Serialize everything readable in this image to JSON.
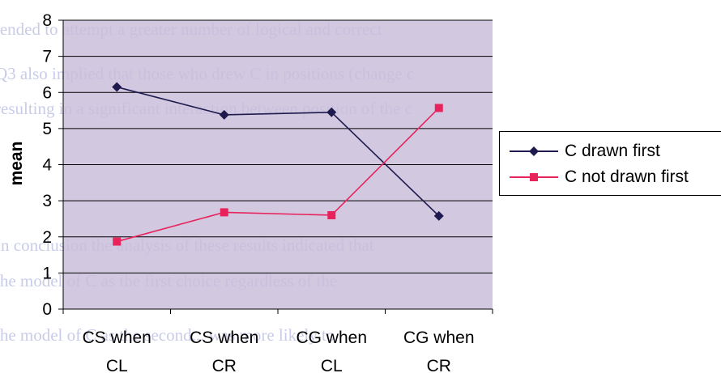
{
  "chart_data": {
    "type": "line",
    "categories": [
      [
        "CS when",
        "CL"
      ],
      [
        "CS when",
        "CR"
      ],
      [
        "CG when",
        "CL"
      ],
      [
        "CG when",
        "CR"
      ]
    ],
    "series": [
      {
        "name": "C drawn first",
        "values": [
          6.15,
          5.38,
          5.45,
          2.58
        ],
        "color": "#1f1a4d",
        "marker": "diamond"
      },
      {
        "name": "C not drawn first",
        "values": [
          1.87,
          2.68,
          2.6,
          5.57
        ],
        "color": "#e8235c",
        "marker": "square"
      }
    ],
    "title": "",
    "xlabel": "",
    "ylabel": "mean",
    "ylim": [
      0,
      8
    ],
    "yticks": [
      0,
      1,
      2,
      3,
      4,
      5,
      6,
      7,
      8
    ],
    "grid": true,
    "legend": "right",
    "plot_color": "#c8bddb",
    "grid_color": "#000000"
  },
  "background_text": [
    "tended to attempt a greater number of logical and correct",
    "Q3 also implied that those who drew C in positions (change c",
    "resulting in a significant interaction between position of the c",
    "…",
    "…",
    "…",
    "In conclusion the analysis of these results indicated that",
    "the model of C as the first choice regardless of the",
    "the model of C as the second... was more likely to"
  ]
}
